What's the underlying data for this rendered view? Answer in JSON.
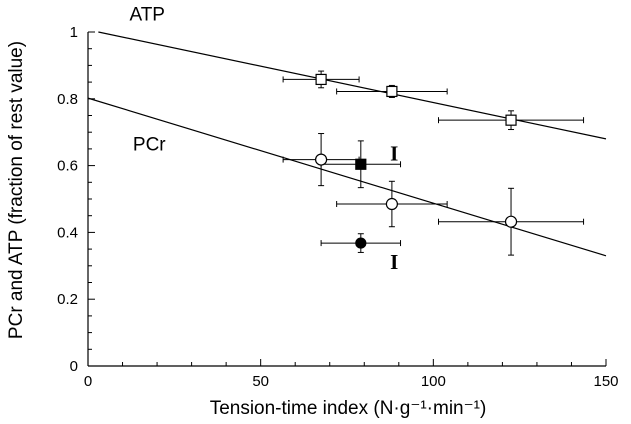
{
  "chart_data": {
    "type": "scatter",
    "xlabel": "Tension-time index (N·g⁻¹·min⁻¹)",
    "ylabel": "PCr and ATP (fraction of rest value)",
    "xlim": [
      0,
      150
    ],
    "ylim": [
      0,
      1
    ],
    "x_ticks": [
      0,
      50,
      100,
      150
    ],
    "x_tick_labels": [
      "0",
      "50",
      "100",
      "150"
    ],
    "y_ticks": [
      0,
      0.2,
      0.4,
      0.6,
      0.8,
      1
    ],
    "y_tick_labels": [
      "0",
      "0.2",
      "0.4",
      "0.6",
      "0.8",
      "1"
    ],
    "grid": false,
    "legend": "none",
    "series": [
      {
        "name": "ATP",
        "marker": "open-square",
        "points": [
          {
            "x": 67.5,
            "y": 0.858,
            "xerr": 11,
            "yerr": 0.025
          },
          {
            "x": 88,
            "y": 0.822,
            "xerr": 16,
            "yerr": 0.018
          },
          {
            "x": 122.5,
            "y": 0.736,
            "xerr": 21,
            "yerr": 0.028
          }
        ],
        "fit_line": {
          "x": [
            3,
            150
          ],
          "y": [
            1.0,
            0.68
          ]
        }
      },
      {
        "name": "PCr",
        "marker": "open-circle",
        "points": [
          {
            "x": 67.5,
            "y": 0.618,
            "xerr": 11,
            "yerr": 0.078
          },
          {
            "x": 88,
            "y": 0.485,
            "xerr": 16,
            "yerr": 0.068
          },
          {
            "x": 122.5,
            "y": 0.432,
            "xerr": 21,
            "yerr": 0.1
          }
        ],
        "fit_line": {
          "x": [
            0,
            150
          ],
          "y": [
            0.802,
            0.33
          ]
        }
      },
      {
        "name": "",
        "marker": "filled-square",
        "points": [
          {
            "x": 79,
            "y": 0.604,
            "xerr": 11.5,
            "yerr": 0.07
          }
        ]
      },
      {
        "name": "",
        "marker": "filled-circle",
        "points": [
          {
            "x": 79,
            "y": 0.368,
            "xerr": 11.5,
            "yerr": 0.028
          }
        ]
      }
    ],
    "annotations": [
      {
        "text": "ATP",
        "x": 12,
        "y": 1.035
      },
      {
        "text": "PCr",
        "x": 13,
        "y": 0.645
      },
      {
        "text": "I",
        "x": 87.5,
        "y": 0.615
      },
      {
        "text": "I",
        "x": 87.5,
        "y": 0.29
      }
    ]
  }
}
